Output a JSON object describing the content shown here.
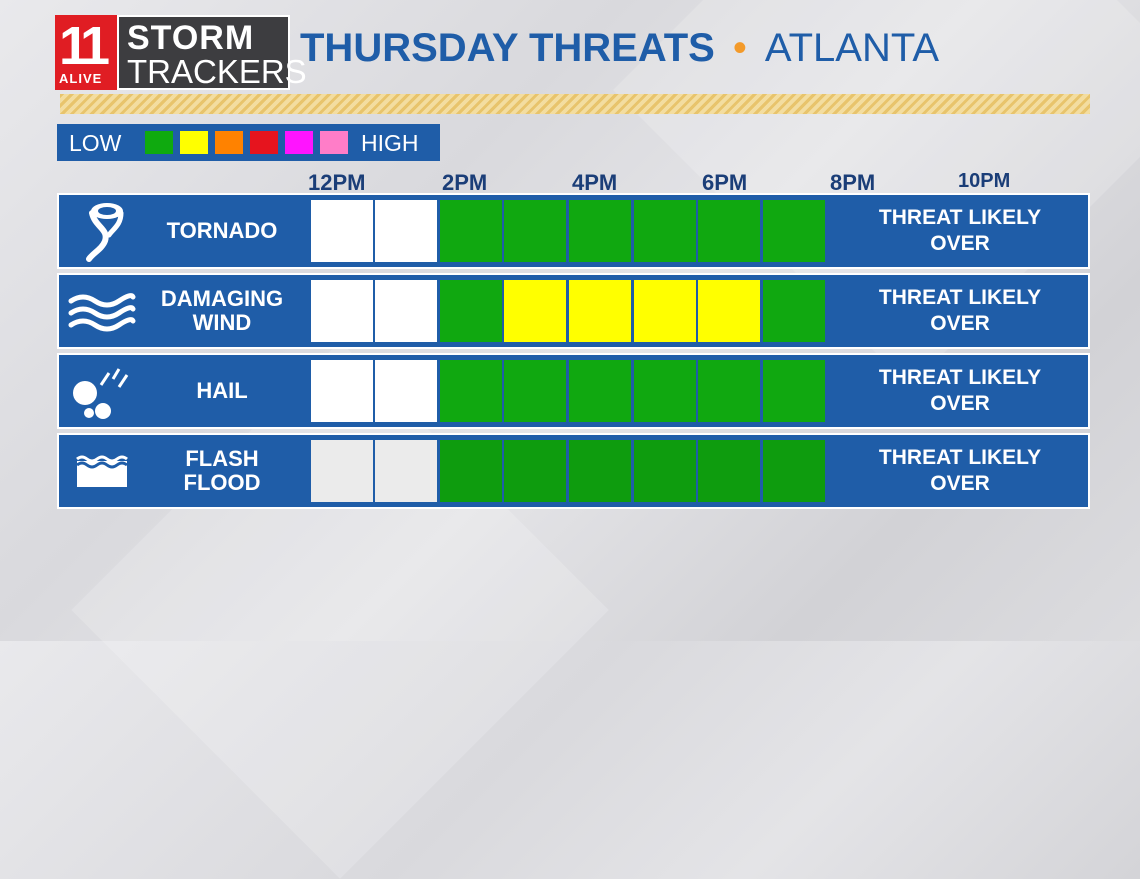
{
  "logo": {
    "number": "11",
    "station": "ALIVE",
    "line1": "STORM",
    "line2": "TRACKERS"
  },
  "title": {
    "day_label": "THURSDAY THREATS",
    "separator": "•",
    "city": "ATLANTA"
  },
  "legend": {
    "low_label": "LOW",
    "high_label": "HIGH",
    "swatches": [
      "#0faa0f",
      "#ffff00",
      "#ff8200",
      "#e6141e",
      "#ff14ff",
      "#ff7dc8"
    ]
  },
  "time_labels": [
    "12PM",
    "2PM",
    "4PM",
    "6PM",
    "8PM",
    "10PM"
  ],
  "colors": {
    "none": "#ffffff",
    "low": "#10a810",
    "marginal": "#ffff00",
    "panel": "#1f5da8",
    "accent": "#f39a2a"
  },
  "threats": [
    {
      "icon": "tornado-icon",
      "label": "TORNADO",
      "levels": [
        "none",
        "none",
        "low",
        "low",
        "low",
        "low",
        "low",
        "low"
      ],
      "status": "THREAT LIKELY\nOVER"
    },
    {
      "icon": "wind-icon",
      "label": "DAMAGING\nWIND",
      "levels": [
        "none",
        "none",
        "low",
        "marginal",
        "marginal",
        "marginal",
        "marginal",
        "low"
      ],
      "status": "THREAT LIKELY\nOVER"
    },
    {
      "icon": "hail-icon",
      "label": "HAIL",
      "levels": [
        "none",
        "none",
        "low",
        "low",
        "low",
        "low",
        "low",
        "low"
      ],
      "status": "THREAT LIKELY\nOVER"
    },
    {
      "icon": "flood-icon",
      "label": "FLASH\nFLOOD",
      "levels": [
        "none",
        "none",
        "low",
        "low",
        "low",
        "low",
        "low",
        "low"
      ],
      "status": "THREAT LIKELY\nOVER"
    }
  ]
}
